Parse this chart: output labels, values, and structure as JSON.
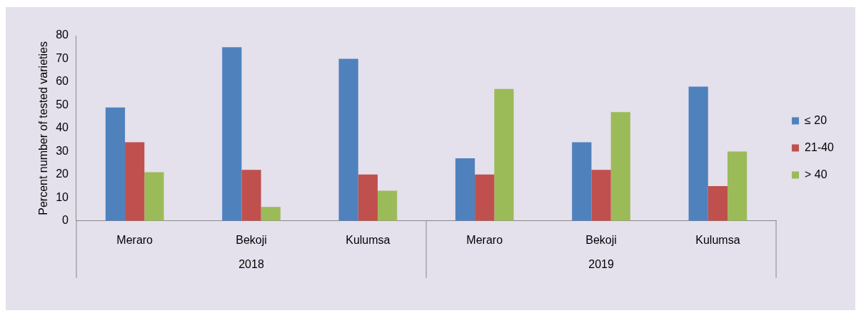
{
  "chart_data": {
    "type": "bar",
    "ylabel": "Percent number of tested varieties",
    "categories": [
      "Meraro",
      "Bekoji",
      "Kulumsa",
      "Meraro",
      "Bekoji",
      "Kulumsa"
    ],
    "annotations": [
      "2018",
      "2019"
    ],
    "series": [
      {
        "name": "≤ 20",
        "color": "#4f81bd",
        "values": [
          49,
          75,
          70,
          27,
          34,
          58
        ]
      },
      {
        "name": "21-40",
        "color": "#c0504d",
        "values": [
          34,
          22,
          20,
          20,
          22,
          15
        ]
      },
      {
        "name": "> 40",
        "color": "#9bbb59",
        "values": [
          21,
          6,
          13,
          57,
          47,
          30
        ]
      }
    ],
    "ylim": [
      0,
      80
    ],
    "yticks": [
      0,
      10,
      20,
      30,
      40,
      50,
      60,
      70,
      80
    ],
    "grid": false,
    "legend": "right"
  }
}
